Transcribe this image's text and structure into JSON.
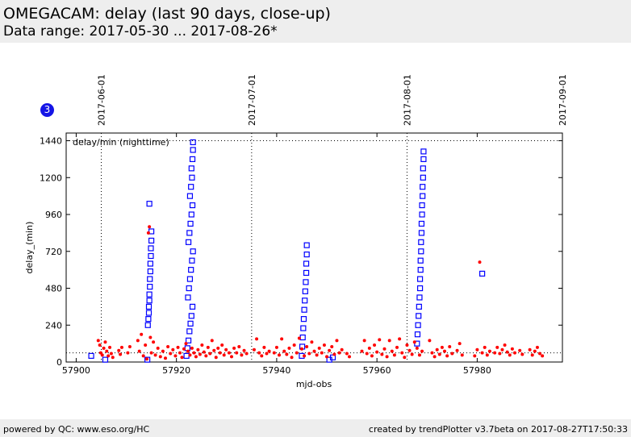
{
  "header": {
    "title": "OMEGACAM: delay (last 90 days, close-up)",
    "subtitle": "Data range: 2017-05-30 ... 2017-08-26*"
  },
  "badge": {
    "label": "3"
  },
  "footer": {
    "left": "powered by QC: www.eso.org/HC",
    "right": "created by trendPlotter v3.7beta on 2017-08-27T17:50:33"
  },
  "colors": {
    "series_nighttime": "#ff0000",
    "series_squares": "#0000ff",
    "badge": "#1515e6"
  },
  "chart_data": {
    "type": "scatter",
    "title": "",
    "annotation": "delay/min (nighttime)",
    "xlabel": "mjd-obs",
    "ylabel": "delay_(min)",
    "xlim": [
      57898,
      57997
    ],
    "ylim": [
      0,
      1490
    ],
    "xticks": [
      57900,
      57920,
      57940,
      57960,
      57980
    ],
    "yticks": [
      0,
      240,
      480,
      720,
      960,
      1200,
      1440
    ],
    "reference_line_y": [
      60,
      1440
    ],
    "date_markers": [
      {
        "mjd": 57905,
        "label": "2017-06-01"
      },
      {
        "mjd": 57935,
        "label": "2017-07-01"
      },
      {
        "mjd": 57966,
        "label": "2017-08-01"
      },
      {
        "mjd": 57997,
        "label": "2017-09-01"
      }
    ],
    "grid": false,
    "series": [
      {
        "marker": "filled-circle",
        "points": [
          [
            57904.4,
            140
          ],
          [
            57904.7,
            110
          ],
          [
            57904.9,
            60
          ],
          [
            57905.2,
            45
          ],
          [
            57905.5,
            90
          ],
          [
            57905.8,
            130
          ],
          [
            57906.1,
            70
          ],
          [
            57906.4,
            40
          ],
          [
            57906.7,
            95
          ],
          [
            57907.0,
            55
          ],
          [
            57907.3,
            30
          ],
          [
            57908.5,
            75
          ],
          [
            57908.8,
            50
          ],
          [
            57909.1,
            95
          ],
          [
            57910.3,
            60
          ],
          [
            57910.7,
            100
          ],
          [
            57912.3,
            140
          ],
          [
            57912.6,
            70
          ],
          [
            57913.0,
            180
          ],
          [
            57913.4,
            40
          ],
          [
            57913.8,
            110
          ],
          [
            57914.1,
            20
          ],
          [
            57914.4,
            840
          ],
          [
            57914.6,
            880
          ],
          [
            57914.8,
            160
          ],
          [
            57915.0,
            60
          ],
          [
            57915.4,
            130
          ],
          [
            57915.8,
            45
          ],
          [
            57916.3,
            90
          ],
          [
            57916.8,
            35
          ],
          [
            57917.3,
            70
          ],
          [
            57917.8,
            25
          ],
          [
            57918.3,
            100
          ],
          [
            57918.8,
            55
          ],
          [
            57919.3,
            80
          ],
          [
            57919.8,
            40
          ],
          [
            57920.3,
            95
          ],
          [
            57920.7,
            60
          ],
          [
            57921.1,
            30
          ],
          [
            57921.5,
            85
          ],
          [
            57921.9,
            120
          ],
          [
            57922.3,
            70
          ],
          [
            57922.7,
            45
          ],
          [
            57923.1,
            90
          ],
          [
            57923.5,
            60
          ],
          [
            57923.9,
            35
          ],
          [
            57924.3,
            80
          ],
          [
            57924.7,
            50
          ],
          [
            57925.1,
            110
          ],
          [
            57925.5,
            65
          ],
          [
            57925.9,
            40
          ],
          [
            57926.3,
            95
          ],
          [
            57926.7,
            55
          ],
          [
            57927.1,
            140
          ],
          [
            57927.5,
            75
          ],
          [
            57927.9,
            30
          ],
          [
            57928.3,
            90
          ],
          [
            57928.7,
            60
          ],
          [
            57929.1,
            110
          ],
          [
            57929.5,
            45
          ],
          [
            57929.9,
            80
          ],
          [
            57930.5,
            60
          ],
          [
            57931.0,
            35
          ],
          [
            57931.5,
            90
          ],
          [
            57932.0,
            60
          ],
          [
            57932.5,
            100
          ],
          [
            57933.0,
            45
          ],
          [
            57933.5,
            75
          ],
          [
            57934.0,
            55
          ],
          [
            57935.5,
            80
          ],
          [
            57936.0,
            150
          ],
          [
            57936.5,
            60
          ],
          [
            57937.0,
            40
          ],
          [
            57937.5,
            95
          ],
          [
            57938.0,
            55
          ],
          [
            57938.5,
            70
          ],
          [
            57939.5,
            60
          ],
          [
            57940.0,
            95
          ],
          [
            57940.5,
            45
          ],
          [
            57941.0,
            150
          ],
          [
            57941.5,
            70
          ],
          [
            57942.0,
            50
          ],
          [
            57942.5,
            90
          ],
          [
            57943.0,
            30
          ],
          [
            57943.5,
            110
          ],
          [
            57944.0,
            60
          ],
          [
            57944.5,
            155
          ],
          [
            57945.0,
            85
          ],
          [
            57945.5,
            40
          ],
          [
            57946.0,
            100
          ],
          [
            57946.5,
            55
          ],
          [
            57947.0,
            130
          ],
          [
            57947.5,
            70
          ],
          [
            57948.0,
            45
          ],
          [
            57948.5,
            90
          ],
          [
            57949.0,
            60
          ],
          [
            57949.5,
            110
          ],
          [
            57950.0,
            35
          ],
          [
            57950.5,
            75
          ],
          [
            57951.0,
            100
          ],
          [
            57951.5,
            50
          ],
          [
            57952.0,
            140
          ],
          [
            57952.5,
            60
          ],
          [
            57953.0,
            80
          ],
          [
            57954.0,
            55
          ],
          [
            57954.5,
            35
          ],
          [
            57957.0,
            70
          ],
          [
            57957.5,
            140
          ],
          [
            57958.0,
            55
          ],
          [
            57958.5,
            90
          ],
          [
            57959.0,
            40
          ],
          [
            57959.5,
            110
          ],
          [
            57960.0,
            65
          ],
          [
            57960.5,
            145
          ],
          [
            57961.0,
            50
          ],
          [
            57961.5,
            85
          ],
          [
            57962.0,
            35
          ],
          [
            57962.5,
            140
          ],
          [
            57963.0,
            70
          ],
          [
            57963.5,
            45
          ],
          [
            57964.0,
            95
          ],
          [
            57964.5,
            150
          ],
          [
            57965.0,
            60
          ],
          [
            57965.5,
            30
          ],
          [
            57966.0,
            110
          ],
          [
            57966.5,
            75
          ],
          [
            57967.0,
            50
          ],
          [
            57967.5,
            130
          ],
          [
            57968.0,
            90
          ],
          [
            57968.5,
            45
          ],
          [
            57969.0,
            70
          ],
          [
            57970.5,
            140
          ],
          [
            57971.0,
            60
          ],
          [
            57971.5,
            35
          ],
          [
            57972.0,
            80
          ],
          [
            57972.5,
            50
          ],
          [
            57973.0,
            95
          ],
          [
            57973.5,
            70
          ],
          [
            57974.0,
            40
          ],
          [
            57974.5,
            100
          ],
          [
            57975.0,
            55
          ],
          [
            57976.0,
            75
          ],
          [
            57976.5,
            120
          ],
          [
            57977.0,
            45
          ],
          [
            57979.5,
            40
          ],
          [
            57980.0,
            80
          ],
          [
            57980.5,
            650
          ],
          [
            57981.0,
            60
          ],
          [
            57981.5,
            95
          ],
          [
            57982.0,
            45
          ],
          [
            57982.5,
            70
          ],
          [
            57983.5,
            60
          ],
          [
            57984.0,
            95
          ],
          [
            57984.5,
            55
          ],
          [
            57985.0,
            80
          ],
          [
            57985.5,
            110
          ],
          [
            57986.0,
            65
          ],
          [
            57986.5,
            45
          ],
          [
            57987.0,
            85
          ],
          [
            57987.5,
            60
          ],
          [
            57988.5,
            75
          ],
          [
            57989.0,
            50
          ],
          [
            57990.5,
            80
          ],
          [
            57991.0,
            45
          ],
          [
            57991.5,
            70
          ],
          [
            57992.0,
            95
          ],
          [
            57992.5,
            55
          ],
          [
            57993.0,
            40
          ]
        ]
      },
      {
        "marker": "open-square",
        "points": [
          [
            57903.0,
            40
          ],
          [
            57905.8,
            15
          ],
          [
            57914.2,
            15
          ],
          [
            57914.3,
            240
          ],
          [
            57914.4,
            280
          ],
          [
            57914.5,
            320
          ],
          [
            57914.5,
            360
          ],
          [
            57914.6,
            400
          ],
          [
            57914.6,
            440
          ],
          [
            57914.7,
            490
          ],
          [
            57914.7,
            540
          ],
          [
            57914.8,
            590
          ],
          [
            57914.8,
            640
          ],
          [
            57914.9,
            690
          ],
          [
            57914.9,
            740
          ],
          [
            57915.0,
            790
          ],
          [
            57915.0,
            850
          ],
          [
            57914.6,
            1030
          ],
          [
            57922.0,
            40
          ],
          [
            57922.2,
            90
          ],
          [
            57922.4,
            140
          ],
          [
            57922.6,
            200
          ],
          [
            57922.8,
            250
          ],
          [
            57923.0,
            300
          ],
          [
            57923.2,
            360
          ],
          [
            57922.3,
            420
          ],
          [
            57922.5,
            480
          ],
          [
            57922.7,
            540
          ],
          [
            57922.9,
            600
          ],
          [
            57923.1,
            660
          ],
          [
            57923.3,
            720
          ],
          [
            57922.4,
            780
          ],
          [
            57922.6,
            840
          ],
          [
            57922.8,
            900
          ],
          [
            57923.0,
            960
          ],
          [
            57923.2,
            1020
          ],
          [
            57922.7,
            1080
          ],
          [
            57922.9,
            1140
          ],
          [
            57923.1,
            1200
          ],
          [
            57923.0,
            1260
          ],
          [
            57923.2,
            1320
          ],
          [
            57923.3,
            1380
          ],
          [
            57923.3,
            1430
          ],
          [
            57945.0,
            40
          ],
          [
            57945.1,
            100
          ],
          [
            57945.2,
            160
          ],
          [
            57945.3,
            220
          ],
          [
            57945.4,
            280
          ],
          [
            57945.5,
            340
          ],
          [
            57945.6,
            400
          ],
          [
            57945.7,
            460
          ],
          [
            57945.8,
            520
          ],
          [
            57945.9,
            580
          ],
          [
            57945.9,
            640
          ],
          [
            57946.0,
            700
          ],
          [
            57946.0,
            760
          ],
          [
            57950.5,
            15
          ],
          [
            57951.2,
            30
          ],
          [
            57968.0,
            120
          ],
          [
            57968.1,
            180
          ],
          [
            57968.2,
            240
          ],
          [
            57968.3,
            300
          ],
          [
            57968.4,
            360
          ],
          [
            57968.5,
            420
          ],
          [
            57968.6,
            480
          ],
          [
            57968.6,
            540
          ],
          [
            57968.7,
            600
          ],
          [
            57968.7,
            660
          ],
          [
            57968.8,
            720
          ],
          [
            57968.8,
            780
          ],
          [
            57968.9,
            840
          ],
          [
            57968.9,
            900
          ],
          [
            57969.0,
            960
          ],
          [
            57969.0,
            1020
          ],
          [
            57969.1,
            1080
          ],
          [
            57969.1,
            1140
          ],
          [
            57969.2,
            1200
          ],
          [
            57969.2,
            1260
          ],
          [
            57969.3,
            1320
          ],
          [
            57969.3,
            1370
          ],
          [
            57981.0,
            575
          ]
        ]
      }
    ]
  }
}
